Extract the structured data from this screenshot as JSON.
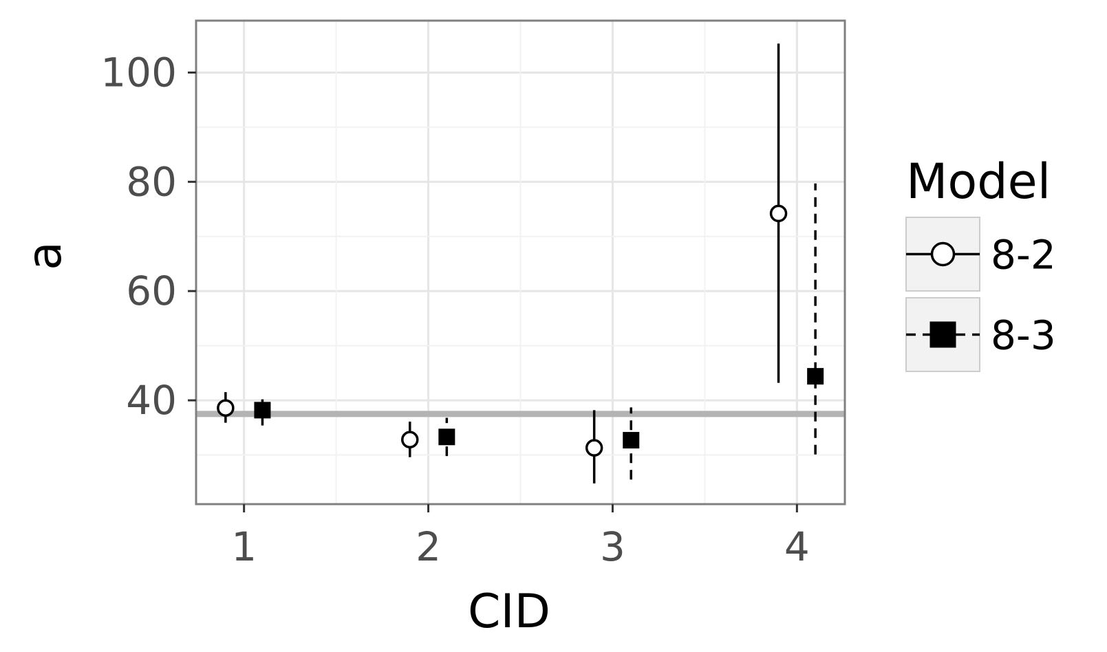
{
  "chart_data": {
    "type": "scatter",
    "title": "",
    "xlabel": "CID",
    "ylabel": "a",
    "xlim": [
      0.74,
      4.26
    ],
    "ylim": [
      21,
      109.5
    ],
    "x_ticks": [
      1,
      2,
      3,
      4
    ],
    "y_ticks": [
      40,
      60,
      80,
      100
    ],
    "grid": true,
    "reference_line": 37.5,
    "legend": {
      "title": "Model",
      "position": "right"
    },
    "series": [
      {
        "name": "8-2",
        "marker": "open-circle",
        "line_style": "solid",
        "x": [
          1,
          2,
          3,
          4
        ],
        "y": [
          38.6,
          32.8,
          31.3,
          74.2
        ],
        "lower": [
          35.9,
          29.6,
          24.8,
          43.2
        ],
        "upper": [
          41.5,
          36.1,
          38.2,
          105.3
        ]
      },
      {
        "name": "8-3",
        "marker": "filled-square",
        "line_style": "dashed",
        "x": [
          1,
          2,
          3,
          4
        ],
        "y": [
          38.2,
          33.3,
          32.7,
          44.4
        ],
        "lower": [
          35.4,
          29.8,
          25.5,
          30.1
        ],
        "upper": [
          40.2,
          36.8,
          38.7,
          79.7
        ]
      }
    ]
  }
}
